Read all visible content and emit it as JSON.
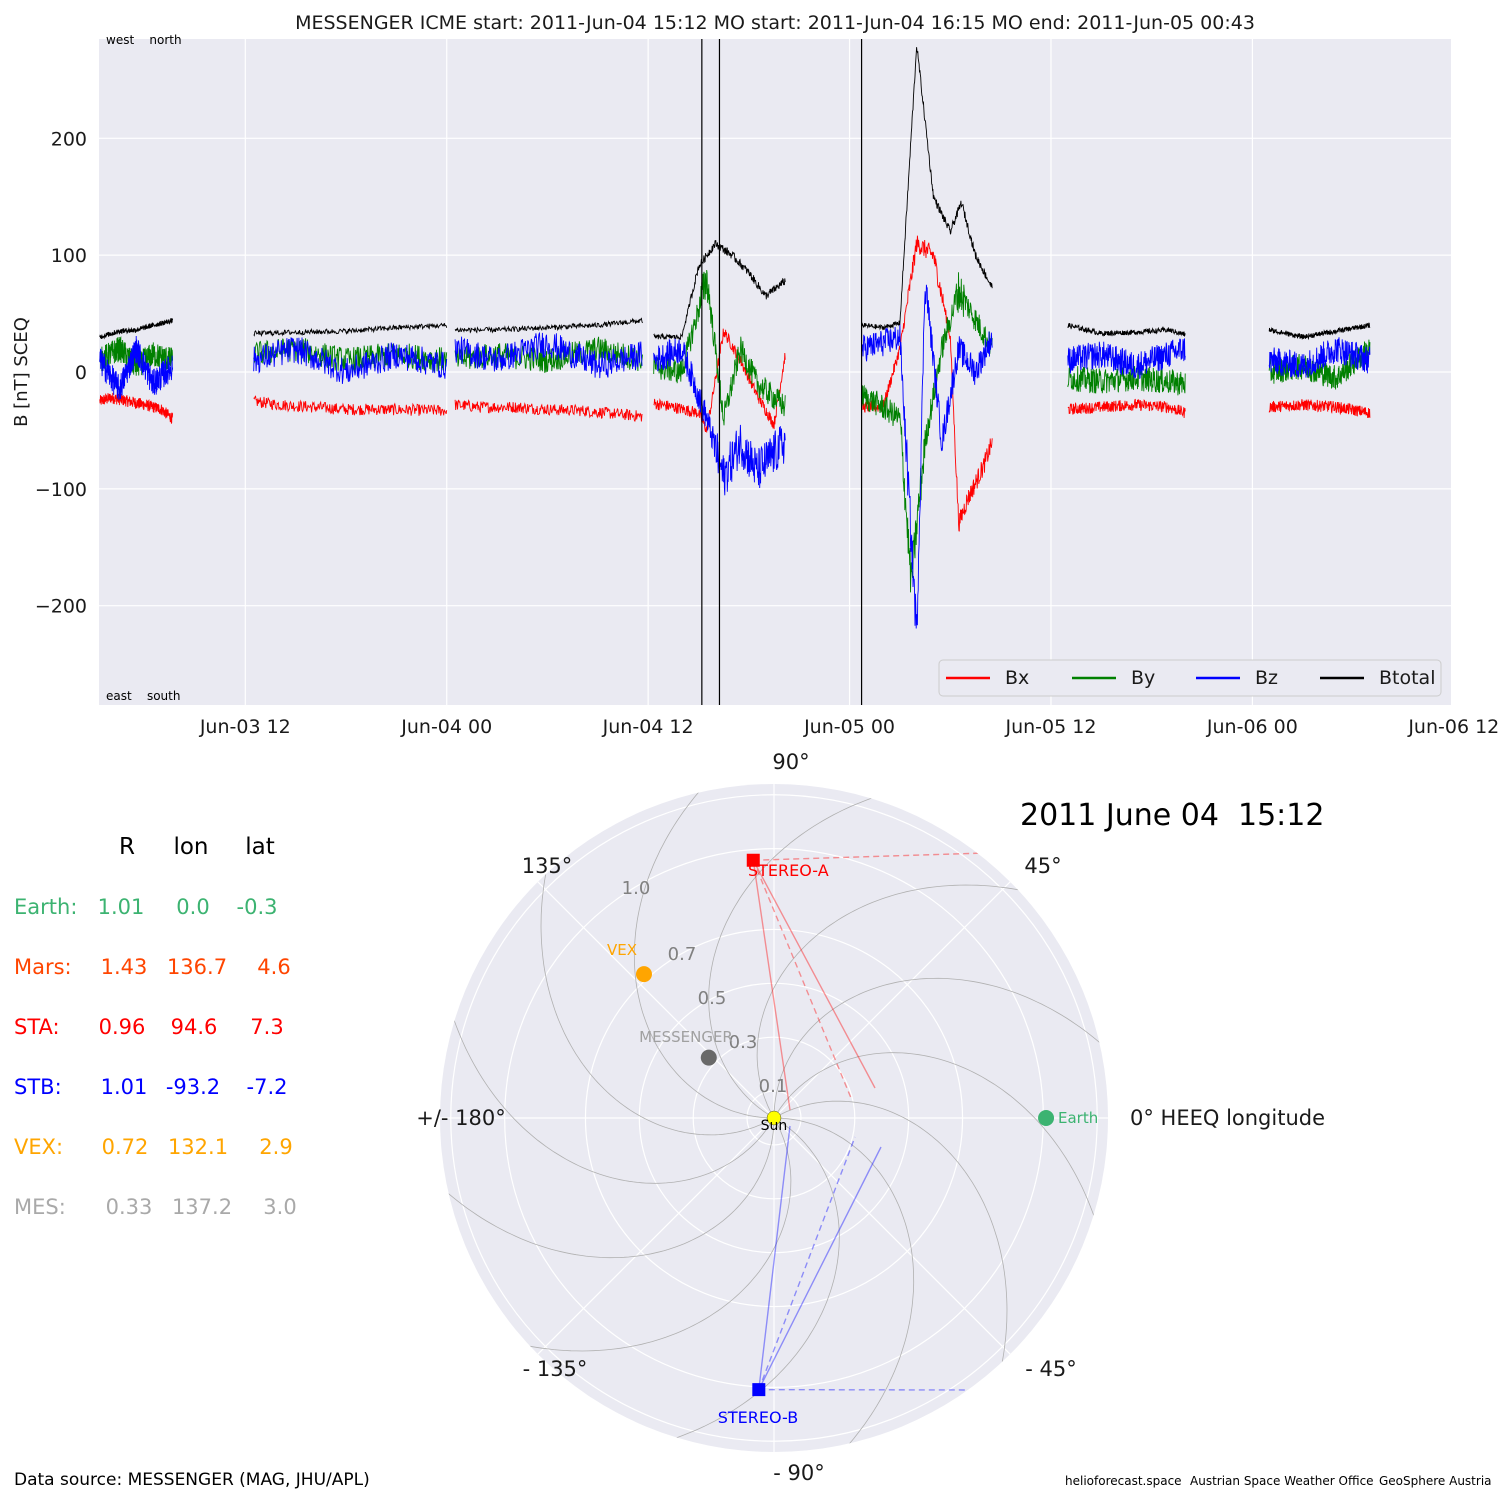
{
  "timeseries": {
    "title": "MESSENGER    ICME start: 2011-Jun-04 15:12   MO start: 2011-Jun-04 16:15   MO end: 2011-Jun-05 00:43",
    "ylabel": "B [nT] SCEQ",
    "corner_top": "west    north",
    "corner_bottom": "east    south",
    "legend": [
      "Bx",
      "By",
      "Bz",
      "Btotal"
    ]
  },
  "polar": {
    "date": "2011 June 04  15:12",
    "angle_labels": {
      "a90": "90°",
      "a45": "45°",
      "a0": "0° HEEQ longitude",
      "am45": "- 45°",
      "am90": "- 90°",
      "am135": "- 135°",
      "a180": "+/- 180°",
      "a135": "135°"
    },
    "radial_labels": [
      "0.1",
      "0.3",
      "0.5",
      "0.7",
      "1.0"
    ],
    "objects": {
      "sun": "Sun",
      "earth": "Earth",
      "sta": "STEREO-A",
      "stb": "STEREO-B",
      "vex": "VEX",
      "mes": "MESSENGER"
    }
  },
  "table": {
    "headers": [
      "R",
      "lon",
      "lat"
    ],
    "rows": [
      {
        "name": "Earth:",
        "R": "1.01",
        "lon": "0.0",
        "lat": "-0.3",
        "color": "#3cb371"
      },
      {
        "name": "Mars:",
        "R": "1.43",
        "lon": "136.7",
        "lat": "4.6",
        "color": "#ff4500"
      },
      {
        "name": "STA:",
        "R": "0.96",
        "lon": "94.6",
        "lat": "7.3",
        "color": "#ff0000"
      },
      {
        "name": "STB:",
        "R": "1.01",
        "lon": "-93.2",
        "lat": "-7.2",
        "color": "#0000ff"
      },
      {
        "name": "VEX:",
        "R": "0.72",
        "lon": "132.1",
        "lat": "2.9",
        "color": "#ffa500"
      },
      {
        "name": "MES:",
        "R": "0.33",
        "lon": "137.2",
        "lat": "3.0",
        "color": "#a9a9a9"
      }
    ]
  },
  "footer": {
    "source": "Data source: MESSENGER (MAG, JHU/APL)",
    "credit1": "helioforecast.space",
    "credit2": "Austrian Space Weather Office",
    "credit3": "GeoSphere Austria"
  },
  "chart_data": [
    {
      "type": "line",
      "xlabel": "",
      "ylabel": "B [nT] SCEQ",
      "x_ticks": [
        "Jun-03 12",
        "Jun-04 00",
        "Jun-04 12",
        "Jun-05 00",
        "Jun-05 12",
        "Jun-06 00",
        "Jun-06 12"
      ],
      "y_ticks": [
        -200,
        -100,
        0,
        100,
        200
      ],
      "xlim": [
        "2011-06-03 03:17",
        "2011-06-06 11:50"
      ],
      "ylim": [
        -285,
        285
      ],
      "grid": true,
      "legend_position": "lower-right",
      "vertical_lines": [
        "2011-06-04 15:12",
        "2011-06-04 16:15",
        "2011-06-05 00:43"
      ],
      "series": [
        {
          "name": "Bx",
          "color": "#ff0000",
          "segments": [
            {
              "x": [
                "2011-06-03 03:20",
                "2011-06-03 04:00",
                "2011-06-03 05:00",
                "2011-06-03 06:00",
                "2011-06-03 07:00",
                "2011-06-03 07:40"
              ],
              "y": [
                -25,
                -22,
                -25,
                -28,
                -32,
                -40
              ]
            },
            {
              "x": [
                "2011-06-03 12:30",
                "2011-06-03 14:00",
                "2011-06-03 16:00",
                "2011-06-03 18:00",
                "2011-06-03 20:00",
                "2011-06-03 24:00"
              ],
              "y": [
                -25,
                -28,
                -30,
                -32,
                -32,
                -33
              ]
            },
            {
              "x": [
                "2011-06-04 00:30",
                "2011-06-04 02:00",
                "2011-06-04 04:00",
                "2011-06-04 06:00",
                "2011-06-04 08:00",
                "2011-06-04 11:40"
              ],
              "y": [
                -28,
                -30,
                -30,
                -32,
                -33,
                -38
              ]
            },
            {
              "x": [
                "2011-06-04 12:20",
                "2011-06-04 13:30",
                "2011-06-04 15:00",
                "2011-06-04 15:30",
                "2011-06-04 16:30",
                "2011-06-04 17:30",
                "2011-06-04 18:30",
                "2011-06-04 19:30",
                "2011-06-04 20:10"
              ],
              "y": [
                -27,
                -30,
                -35,
                -50,
                35,
                10,
                -20,
                -45,
                15
              ]
            },
            {
              "x": [
                "2011-06-05 00:45",
                "2011-06-05 02:00",
                "2011-06-05 03:00",
                "2011-06-05 04:00",
                "2011-06-05 05:00",
                "2011-06-05 06:00",
                "2011-06-05 06:30",
                "2011-06-05 07:00",
                "2011-06-05 08:00",
                "2011-06-05 08:30"
              ],
              "y": [
                -30,
                -30,
                20,
                110,
                100,
                30,
                -130,
                -110,
                -80,
                -60
              ]
            },
            {
              "x": [
                "2011-06-05 13:00",
                "2011-06-05 15:00",
                "2011-06-05 17:00",
                "2011-06-05 19:00",
                "2011-06-05 20:00"
              ],
              "y": [
                -32,
                -30,
                -28,
                -30,
                -35
              ]
            },
            {
              "x": [
                "2011-06-06 01:00",
                "2011-06-06 03:00",
                "2011-06-06 05:00",
                "2011-06-06 07:00"
              ],
              "y": [
                -30,
                -28,
                -30,
                -35
              ]
            }
          ]
        },
        {
          "name": "By",
          "color": "#008000",
          "segments": [
            {
              "x": [
                "2011-06-03 03:20",
                "2011-06-03 04:30",
                "2011-06-03 05:30",
                "2011-06-03 06:30",
                "2011-06-03 07:40"
              ],
              "y": [
                10,
                20,
                5,
                15,
                10
              ]
            },
            {
              "x": [
                "2011-06-03 12:30",
                "2011-06-03 15:00",
                "2011-06-03 18:00",
                "2011-06-03 21:00",
                "2011-06-03 24:00"
              ],
              "y": [
                15,
                20,
                10,
                15,
                10
              ]
            },
            {
              "x": [
                "2011-06-04 00:30",
                "2011-06-04 03:00",
                "2011-06-04 06:00",
                "2011-06-04 09:00",
                "2011-06-04 11:40"
              ],
              "y": [
                10,
                15,
                10,
                20,
                10
              ]
            },
            {
              "x": [
                "2011-06-04 12:20",
                "2011-06-04 14:00",
                "2011-06-04 15:30",
                "2011-06-04 16:30",
                "2011-06-04 17:30",
                "2011-06-04 18:30",
                "2011-06-04 20:10"
              ],
              "y": [
                5,
                0,
                80,
                -40,
                20,
                -10,
                -30
              ]
            },
            {
              "x": [
                "2011-06-05 00:45",
                "2011-06-05 02:00",
                "2011-06-05 03:00",
                "2011-06-05 03:40",
                "2011-06-05 04:30",
                "2011-06-05 05:30",
                "2011-06-05 06:30",
                "2011-06-05 07:30",
                "2011-06-05 08:30"
              ],
              "y": [
                -20,
                -30,
                -40,
                -180,
                -60,
                20,
                70,
                45,
                20
              ]
            },
            {
              "x": [
                "2011-06-05 13:00",
                "2011-06-05 15:00",
                "2011-06-05 17:00",
                "2011-06-05 20:00"
              ],
              "y": [
                -5,
                -8,
                -5,
                -10
              ]
            },
            {
              "x": [
                "2011-06-06 01:00",
                "2011-06-06 03:00",
                "2011-06-06 05:00",
                "2011-06-06 07:00"
              ],
              "y": [
                0,
                5,
                -5,
                20
              ]
            }
          ]
        },
        {
          "name": "Bz",
          "color": "#0000ff",
          "segments": [
            {
              "x": [
                "2011-06-03 03:20",
                "2011-06-03 04:30",
                "2011-06-03 05:30",
                "2011-06-03 06:30",
                "2011-06-03 07:40"
              ],
              "y": [
                10,
                -15,
                20,
                -10,
                5
              ]
            },
            {
              "x": [
                "2011-06-03 12:30",
                "2011-06-03 15:00",
                "2011-06-03 18:00",
                "2011-06-03 21:00",
                "2011-06-03 24:00"
              ],
              "y": [
                10,
                20,
                0,
                15,
                5
              ]
            },
            {
              "x": [
                "2011-06-04 00:30",
                "2011-06-04 03:00",
                "2011-06-04 06:00",
                "2011-06-04 09:00",
                "2011-06-04 11:40"
              ],
              "y": [
                20,
                10,
                25,
                5,
                15
              ]
            },
            {
              "x": [
                "2011-06-04 12:20",
                "2011-06-04 14:00",
                "2011-06-04 15:30",
                "2011-06-04 16:30",
                "2011-06-04 17:30",
                "2011-06-04 18:30",
                "2011-06-04 20:10"
              ],
              "y": [
                10,
                20,
                -40,
                -90,
                -60,
                -85,
                -60
              ]
            },
            {
              "x": [
                "2011-06-05 00:45",
                "2011-06-05 02:00",
                "2011-06-05 03:00",
                "2011-06-05 04:00",
                "2011-06-05 04:30",
                "2011-06-05 05:30",
                "2011-06-05 06:30",
                "2011-06-05 07:30",
                "2011-06-05 08:30"
              ],
              "y": [
                20,
                25,
                30,
                -225,
                80,
                -60,
                20,
                0,
                30
              ]
            },
            {
              "x": [
                "2011-06-05 13:00",
                "2011-06-05 15:00",
                "2011-06-05 17:00",
                "2011-06-05 20:00"
              ],
              "y": [
                10,
                15,
                5,
                20
              ]
            },
            {
              "x": [
                "2011-06-06 01:00",
                "2011-06-06 03:00",
                "2011-06-06 05:00",
                "2011-06-06 07:00"
              ],
              "y": [
                10,
                5,
                20,
                10
              ]
            }
          ]
        },
        {
          "name": "Btotal",
          "color": "#000000",
          "segments": [
            {
              "x": [
                "2011-06-03 03:20",
                "2011-06-03 04:30",
                "2011-06-03 05:30",
                "2011-06-03 06:30",
                "2011-06-03 07:40"
              ],
              "y": [
                30,
                35,
                36,
                40,
                44
              ]
            },
            {
              "x": [
                "2011-06-03 12:30",
                "2011-06-03 15:00",
                "2011-06-03 18:00",
                "2011-06-03 21:00",
                "2011-06-03 24:00"
              ],
              "y": [
                33,
                34,
                35,
                38,
                40
              ]
            },
            {
              "x": [
                "2011-06-04 00:30",
                "2011-06-04 03:00",
                "2011-06-04 06:00",
                "2011-06-04 09:00",
                "2011-06-04 11:40"
              ],
              "y": [
                36,
                36,
                38,
                40,
                44
              ]
            },
            {
              "x": [
                "2011-06-04 12:20",
                "2011-06-04 14:00",
                "2011-06-04 15:00",
                "2011-06-04 16:00",
                "2011-06-04 17:00",
                "2011-06-04 18:00",
                "2011-06-04 19:00",
                "2011-06-04 20:10"
              ],
              "y": [
                30,
                30,
                90,
                110,
                100,
                85,
                65,
                78
              ]
            },
            {
              "x": [
                "2011-06-05 00:45",
                "2011-06-05 02:00",
                "2011-06-05 03:00",
                "2011-06-05 04:00",
                "2011-06-05 05:00",
                "2011-06-05 06:00",
                "2011-06-05 06:40",
                "2011-06-05 07:30",
                "2011-06-05 08:30"
              ],
              "y": [
                40,
                38,
                42,
                280,
                150,
                120,
                145,
                100,
                72
              ]
            },
            {
              "x": [
                "2011-06-05 13:00",
                "2011-06-05 15:00",
                "2011-06-05 17:00",
                "2011-06-05 19:00",
                "2011-06-05 20:00"
              ],
              "y": [
                40,
                33,
                34,
                36,
                32
              ]
            },
            {
              "x": [
                "2011-06-06 01:00",
                "2011-06-06 03:00",
                "2011-06-06 05:00",
                "2011-06-06 07:00"
              ],
              "y": [
                36,
                30,
                35,
                40
              ]
            }
          ]
        }
      ]
    },
    {
      "type": "scatter",
      "title": "2011 June 04  15:12",
      "projection": "polar",
      "radial_ticks": [
        0.1,
        0.3,
        0.5,
        0.7,
        1.0
      ],
      "angle_ticks": [
        "0° HEEQ longitude",
        "45°",
        "90°",
        "135°",
        "+/- 180°",
        "- 135°",
        "- 90°",
        "- 45°"
      ],
      "points": [
        {
          "name": "Sun",
          "r": 0.0,
          "lon": 0.0,
          "color": "#ffff00"
        },
        {
          "name": "Earth",
          "r": 1.01,
          "lon": 0.0,
          "color": "#3cb371"
        },
        {
          "name": "STEREO-A",
          "r": 0.96,
          "lon": 94.6,
          "color": "#ff0000",
          "marker": "square"
        },
        {
          "name": "STEREO-B",
          "r": 1.01,
          "lon": -93.2,
          "color": "#0000ff",
          "marker": "square"
        },
        {
          "name": "VEX",
          "r": 0.72,
          "lon": 132.1,
          "color": "#ffa500"
        },
        {
          "name": "MESSENGER",
          "r": 0.33,
          "lon": 137.2,
          "color": "#696969"
        }
      ]
    }
  ]
}
